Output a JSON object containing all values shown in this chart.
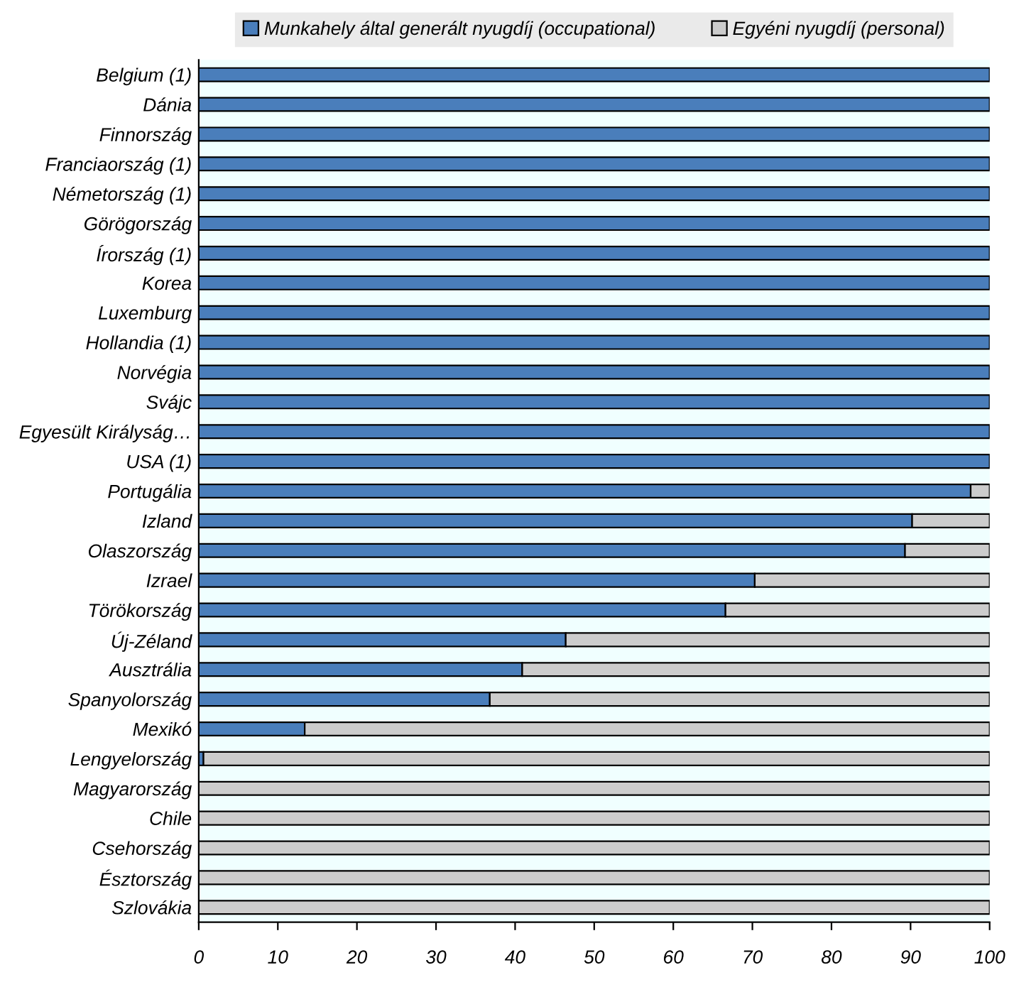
{
  "chart_data": {
    "type": "bar",
    "orientation": "horizontal",
    "stacked": true,
    "categories": [
      "Belgium (1)",
      "Dánia",
      "Finnország",
      "Franciaország (1)",
      "Németország (1)",
      "Görögország",
      "Írország (1)",
      "Korea",
      "Luxemburg",
      "Hollandia (1)",
      "Norvégia",
      "Svájc",
      "Egyesült Királyság…",
      "USA (1)",
      "Portugália",
      "Izland",
      "Olaszország",
      "Izrael",
      "Törökország",
      "Új-Zéland",
      "Ausztrália",
      "Spanyolország",
      "Mexikó",
      "Lengyelország",
      "Magyarország",
      "Chile",
      "Csehország",
      "Észtország",
      "Szlovákia"
    ],
    "series": [
      {
        "name": "Munkahely által generált nyugdíj (occupational)",
        "color": "#4a7ebb",
        "values": [
          100,
          100,
          100,
          100,
          100,
          100,
          100,
          100,
          100,
          100,
          100,
          100,
          100,
          100,
          97.6,
          90.2,
          89.3,
          70.3,
          66.6,
          46.4,
          40.9,
          36.8,
          13.4,
          0.6,
          0,
          0,
          0,
          0,
          0
        ]
      },
      {
        "name": "Egyéni nyugdíj (personal)",
        "color": "#cccccc",
        "values": [
          0,
          0,
          0,
          0,
          0,
          0,
          0,
          0,
          0,
          0,
          0,
          0,
          0,
          0,
          2.4,
          9.8,
          10.7,
          29.7,
          33.4,
          53.6,
          59.1,
          63.2,
          86.6,
          99.4,
          100,
          100,
          100,
          100,
          100
        ]
      }
    ],
    "xlim": [
      0,
      100
    ],
    "xticks": [
      0,
      10,
      20,
      30,
      40,
      50,
      60,
      70,
      80,
      90,
      100
    ],
    "grid": false,
    "legend": "top"
  }
}
